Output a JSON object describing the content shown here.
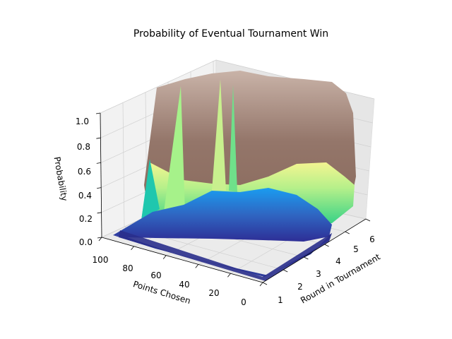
{
  "chart_data": {
    "type": "surface3d",
    "title": "Probability of Eventual Tournament Win",
    "xlabel": "Points Chosen",
    "ylabel": "Round in Tournament",
    "zlabel": "Probability",
    "xlim": [
      0,
      100
    ],
    "ylim": [
      1,
      6
    ],
    "zlim": [
      0.0,
      1.0
    ],
    "x_ticks": [
      "0",
      "20",
      "40",
      "60",
      "80",
      "100"
    ],
    "y_ticks": [
      "1",
      "2",
      "3",
      "4",
      "5",
      "6"
    ],
    "z_ticks": [
      "0.0",
      "0.2",
      "0.4",
      "0.6",
      "0.8",
      "1.0"
    ],
    "colormap": "terrain",
    "grid": true,
    "rounds": [
      1,
      2,
      3,
      4,
      5,
      6
    ],
    "profiles": [
      {
        "round": 1,
        "points": [
          0,
          20,
          40,
          60,
          80,
          100
        ],
        "probability": [
          0.0,
          0.03,
          0.07,
          0.1,
          0.13,
          0.15
        ]
      },
      {
        "round": 2,
        "points": [
          0,
          20,
          40,
          60,
          80,
          100
        ],
        "probability": [
          0.0,
          0.06,
          0.11,
          0.15,
          0.18,
          0.2
        ]
      },
      {
        "round": 3,
        "points": [
          0,
          20,
          40,
          60,
          80,
          100
        ],
        "probability": [
          0.0,
          0.15,
          0.2,
          0.24,
          0.27,
          0.28
        ]
      },
      {
        "round": 4,
        "points": [
          0,
          20,
          40,
          60,
          80,
          100
        ],
        "probability": [
          0.0,
          0.3,
          0.38,
          0.4,
          0.42,
          0.45
        ]
      },
      {
        "round": 5,
        "points": [
          0,
          20,
          40,
          60,
          80,
          100
        ],
        "probability": [
          0.0,
          0.55,
          0.62,
          0.65,
          0.68,
          0.7
        ]
      },
      {
        "round": 6,
        "points": [
          0,
          20,
          40,
          60,
          80,
          100
        ],
        "probability": [
          0.0,
          0.95,
          0.97,
          0.98,
          0.99,
          1.0
        ]
      }
    ]
  }
}
